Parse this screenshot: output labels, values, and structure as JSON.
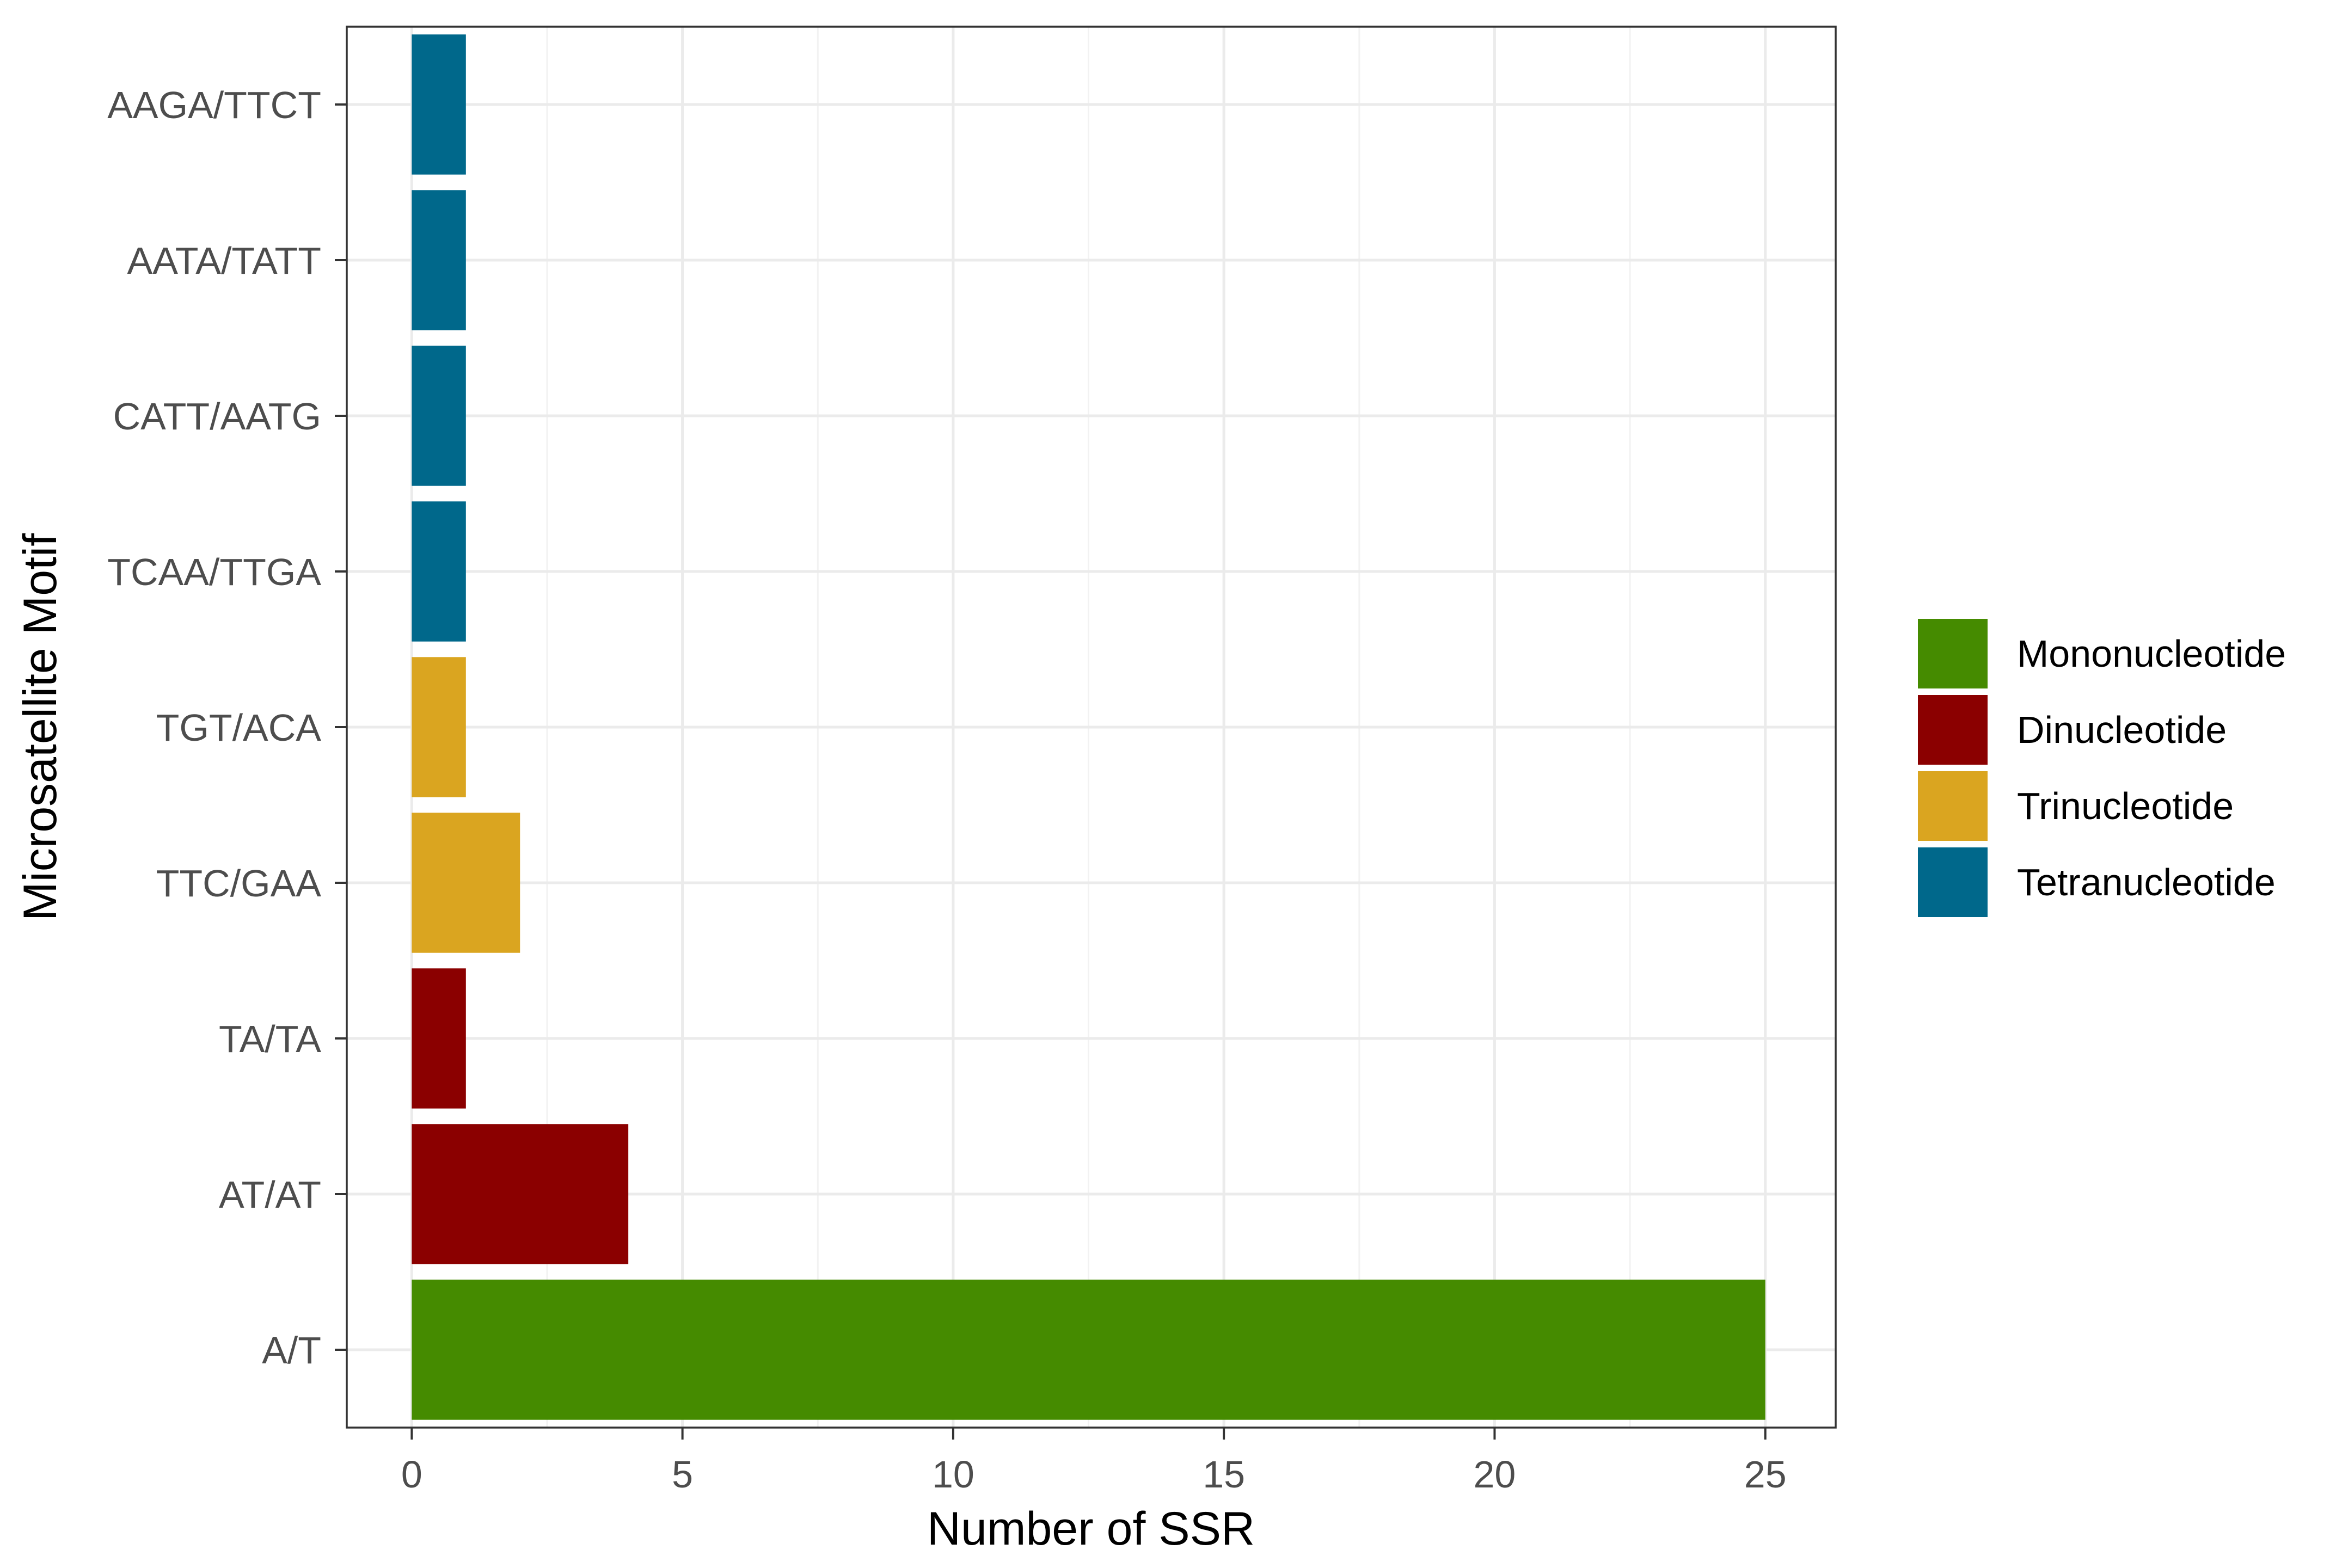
{
  "chart_data": {
    "type": "bar",
    "orientation": "horizontal",
    "title": "",
    "xlabel": "Number of SSR",
    "ylabel": "Microsatellite Motif",
    "xlim": [
      -1.2,
      26.3
    ],
    "xticks": [
      0,
      5,
      10,
      15,
      20,
      25
    ],
    "categories": [
      "A/T",
      "AT/AT",
      "TA/TA",
      "TTC/GAA",
      "TGT/ACA",
      "TCAA/TTGA",
      "CATT/AATG",
      "AATA/TATT",
      "AAGA/TTCT"
    ],
    "values": [
      25,
      4,
      1,
      2,
      1,
      1,
      1,
      1,
      1
    ],
    "groups": [
      "Mononucleotide",
      "Dinucleotide",
      "Dinucleotide",
      "Trinucleotide",
      "Trinucleotide",
      "Tetranucleotide",
      "Tetranucleotide",
      "Tetranucleotide",
      "Tetranucleotide"
    ],
    "legend": {
      "position": "right",
      "entries": [
        {
          "name": "Mononucleotide",
          "color": "#458B00"
        },
        {
          "name": "Dinucleotide",
          "color": "#8B0000"
        },
        {
          "name": "Trinucleotide",
          "color": "#DAA520"
        },
        {
          "name": "Tetranucleotide",
          "color": "#00688B"
        }
      ]
    },
    "grid": true
  }
}
